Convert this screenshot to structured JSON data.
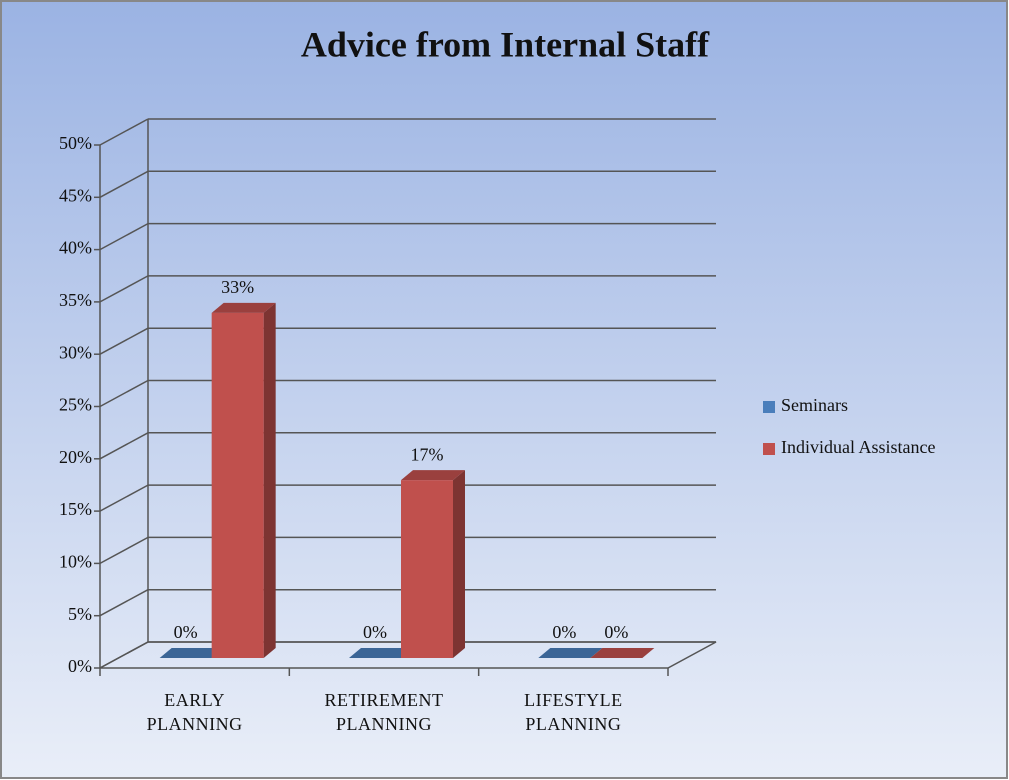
{
  "chart_data": {
    "type": "bar3d",
    "title": "Advice from Internal Staff",
    "categories": [
      "EARLY PLANNING",
      "RETIREMENT PLANNING",
      "LIFESTYLE PLANNING"
    ],
    "series": [
      {
        "name": "Seminars",
        "color": "#4a7ebb",
        "values": [
          0,
          0,
          0
        ],
        "value_labels": [
          "0%",
          "0%",
          "0%"
        ]
      },
      {
        "name": "Individual Assistance",
        "color": "#c0504d",
        "values": [
          33,
          17,
          0
        ],
        "value_labels": [
          "33%",
          "17%",
          "0%"
        ]
      }
    ],
    "ylim": [
      0,
      50
    ],
    "yticks": [
      {
        "value": 0,
        "label": "0%"
      },
      {
        "value": 5,
        "label": "5%"
      },
      {
        "value": 10,
        "label": "10%"
      },
      {
        "value": 15,
        "label": "15%"
      },
      {
        "value": 20,
        "label": "20%"
      },
      {
        "value": 25,
        "label": "25%"
      },
      {
        "value": 30,
        "label": "30%"
      },
      {
        "value": 35,
        "label": "35%"
      },
      {
        "value": 40,
        "label": "40%"
      },
      {
        "value": 45,
        "label": "45%"
      },
      {
        "value": 50,
        "label": "50%"
      }
    ],
    "grid": true,
    "legend": "right"
  }
}
